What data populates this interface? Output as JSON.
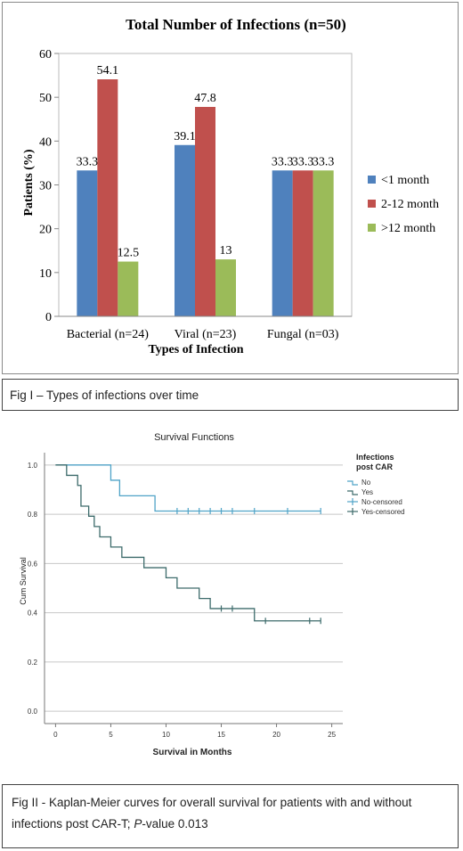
{
  "figure1": {
    "caption": "Fig I – Types of infections over time",
    "chart_data": {
      "type": "bar",
      "title": "Total Number of Infections (n=50)",
      "xlabel": "Types of Infection",
      "ylabel": "Patients (%)",
      "ylim": [
        0,
        60
      ],
      "yticks": [
        "0",
        "10",
        "20",
        "30",
        "40",
        "50",
        "60"
      ],
      "categories": [
        "Bacterial (n=24)",
        "Viral (n=23)",
        "Fungal (n=03)"
      ],
      "legend_position": "right",
      "series": [
        {
          "name": "<1 month",
          "color": "#4f81bd",
          "values": [
            33.3,
            39.1,
            33.3
          ],
          "labels": [
            "33.3",
            "39.1",
            "33.3"
          ]
        },
        {
          "name": "2-12 month",
          "color": "#c0504d",
          "values": [
            54.1,
            47.8,
            33.3
          ],
          "labels": [
            "54.1",
            "47.8",
            "33.3"
          ]
        },
        {
          "name": ">12 month",
          "color": "#9bbb59",
          "values": [
            12.5,
            13,
            33.3
          ],
          "labels": [
            "12.5",
            "13",
            "33.3"
          ]
        }
      ]
    }
  },
  "figure2": {
    "caption_part1": "Fig II - Kaplan-Meier curves for overall survival for patients with and without infections post CAR-T; ",
    "caption_p": "P",
    "caption_part2": "-value 0.013",
    "chart_data": {
      "type": "line",
      "title": "Survival Functions",
      "xlabel": "Survival in Months",
      "ylabel": "Cum Survival",
      "xlim": [
        -1,
        26
      ],
      "ylim": [
        -0.05,
        1.05
      ],
      "xticks": [
        "0",
        "5",
        "10",
        "15",
        "20",
        "25"
      ],
      "yticks": [
        "0.0",
        "0.2",
        "0.4",
        "0.6",
        "0.8",
        "1.0"
      ],
      "grid": "horizontal",
      "legend_title": [
        "Infections",
        "post CAR"
      ],
      "legend_position": "right",
      "legend_entries": [
        "No",
        "Yes",
        "No-censored",
        "Yes-censored"
      ],
      "series": [
        {
          "name": "No",
          "color": "#4fa3c7",
          "steps": [
            [
              0,
              1.0
            ],
            [
              5,
              0.938
            ],
            [
              5.8,
              0.875
            ],
            [
              9,
              0.813
            ],
            [
              24,
              0.813
            ]
          ],
          "censored": [
            [
              11,
              0.813
            ],
            [
              12,
              0.813
            ],
            [
              13,
              0.813
            ],
            [
              14,
              0.813
            ],
            [
              15,
              0.813
            ],
            [
              16,
              0.813
            ],
            [
              18,
              0.813
            ],
            [
              21,
              0.813
            ],
            [
              24,
              0.813
            ]
          ]
        },
        {
          "name": "Yes",
          "color": "#3d6b6b",
          "steps": [
            [
              0,
              1.0
            ],
            [
              1,
              0.958
            ],
            [
              2,
              0.917
            ],
            [
              2.3,
              0.833
            ],
            [
              3,
              0.792
            ],
            [
              3.5,
              0.75
            ],
            [
              4,
              0.708
            ],
            [
              5,
              0.667
            ],
            [
              6,
              0.625
            ],
            [
              8,
              0.583
            ],
            [
              10,
              0.542
            ],
            [
              11,
              0.5
            ],
            [
              13,
              0.458
            ],
            [
              14,
              0.417
            ],
            [
              18,
              0.367
            ],
            [
              24,
              0.367
            ]
          ],
          "censored": [
            [
              15,
              0.417
            ],
            [
              16,
              0.417
            ],
            [
              19,
              0.367
            ],
            [
              23,
              0.367
            ],
            [
              24,
              0.367
            ]
          ]
        }
      ]
    }
  }
}
